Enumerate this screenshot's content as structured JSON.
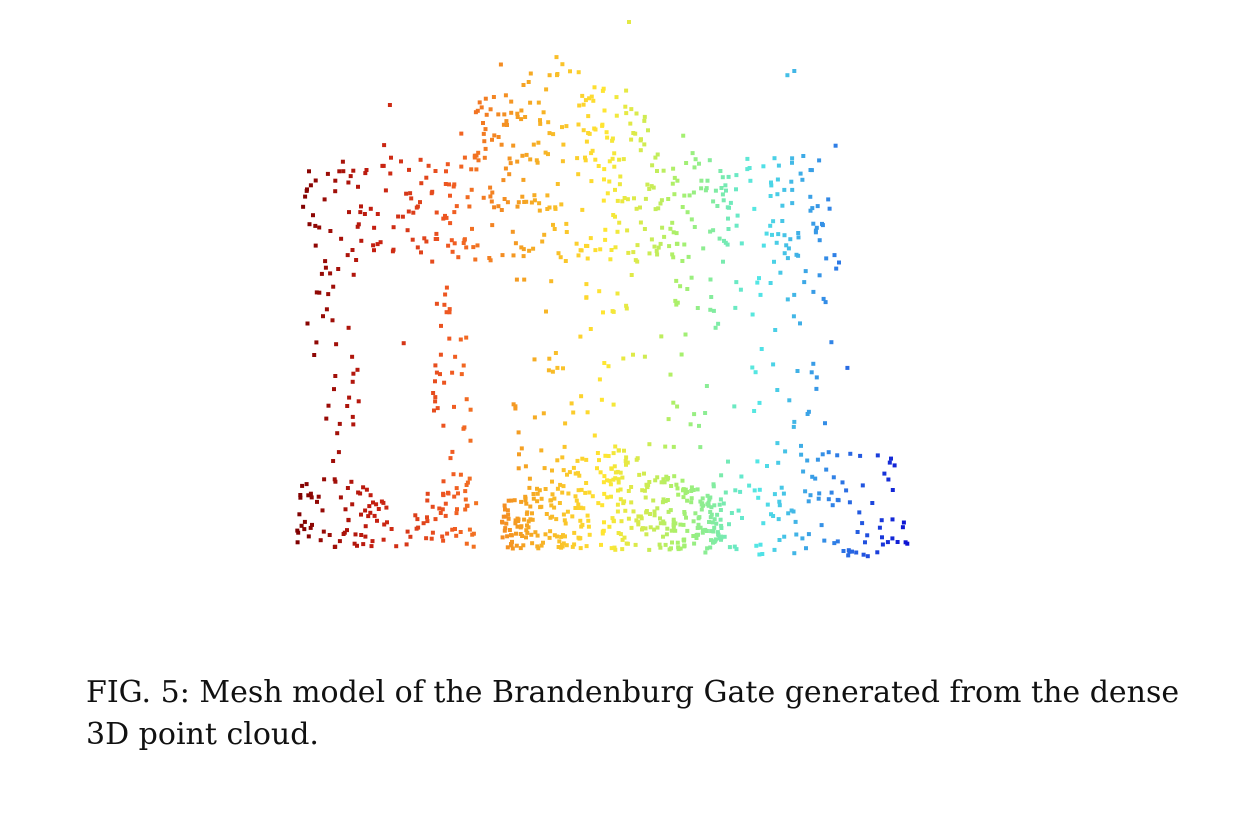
{
  "figure": {
    "caption": "FIG. 5: Mesh model of the Brandenburg Gate generated from the dense 3D point cloud.",
    "colormap": [
      "#7f0000",
      "#c41e10",
      "#f05a22",
      "#f5a623",
      "#ffe632",
      "#a6f06e",
      "#52e6e6",
      "#2f7fe6",
      "#0a0ad2"
    ],
    "point_cloud": {
      "description_shape": "front view of gate: top bar with attic, two outer pillars, central arch base",
      "regions": [
        {
          "name": "top-bar",
          "count": 360
        },
        {
          "name": "attic",
          "count": 110
        },
        {
          "name": "left-pillar",
          "count": 40
        },
        {
          "name": "inner-left-pillar",
          "count": 40
        },
        {
          "name": "right-pillar",
          "count": 30
        },
        {
          "name": "central-columns",
          "count": 80
        },
        {
          "name": "base-left",
          "count": 110
        },
        {
          "name": "base-center",
          "count": 380
        },
        {
          "name": "base-right",
          "count": 120
        },
        {
          "name": "scattered",
          "count": 60
        }
      ]
    }
  }
}
